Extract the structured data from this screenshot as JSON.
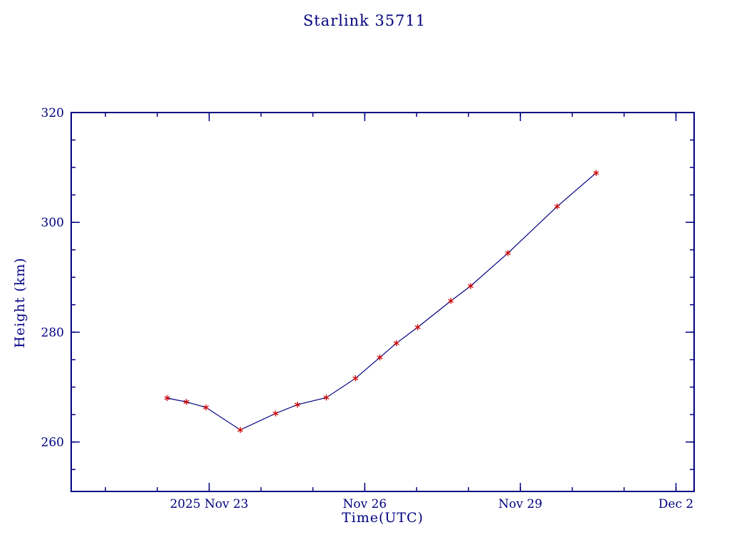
{
  "colors": {
    "background": "#ffffff",
    "axis": "#000080",
    "line": "#000080",
    "marker": "#cc0000"
  },
  "chart_data": {
    "type": "line",
    "title": "Starlink 35711",
    "xlabel": "Time(UTC)",
    "ylabel": "Height (km)",
    "x_unit": "days since 2025 Nov 20 00:00 UTC",
    "xlim": [
      0.34,
      12.35
    ],
    "ylim": [
      251,
      320
    ],
    "x_minor_step": 1,
    "y_minor_step": 5,
    "grid": false,
    "legend": "none",
    "x_ticks": [
      {
        "value": 3,
        "label": "2025 Nov 23"
      },
      {
        "value": 6,
        "label": "Nov 26"
      },
      {
        "value": 9,
        "label": "Nov 29"
      },
      {
        "value": 12,
        "label": "Dec 2"
      }
    ],
    "y_ticks": [
      {
        "value": 260,
        "label": "260"
      },
      {
        "value": 280,
        "label": "280"
      },
      {
        "value": 300,
        "label": "300"
      },
      {
        "value": 320,
        "label": "320"
      }
    ],
    "marker_style": "asterisk",
    "points": [
      {
        "x": 2.19,
        "y": 268.0
      },
      {
        "x": 2.56,
        "y": 267.3
      },
      {
        "x": 2.94,
        "y": 266.3
      },
      {
        "x": 3.6,
        "y": 262.2
      },
      {
        "x": 4.28,
        "y": 265.2
      },
      {
        "x": 4.7,
        "y": 266.8
      },
      {
        "x": 5.26,
        "y": 268.1
      },
      {
        "x": 5.82,
        "y": 271.6
      },
      {
        "x": 6.29,
        "y": 275.4
      },
      {
        "x": 6.61,
        "y": 278.0
      },
      {
        "x": 7.02,
        "y": 280.9
      },
      {
        "x": 7.66,
        "y": 285.7
      },
      {
        "x": 8.04,
        "y": 288.4
      },
      {
        "x": 8.76,
        "y": 294.4
      },
      {
        "x": 9.71,
        "y": 302.9
      },
      {
        "x": 10.46,
        "y": 309.0
      }
    ]
  }
}
